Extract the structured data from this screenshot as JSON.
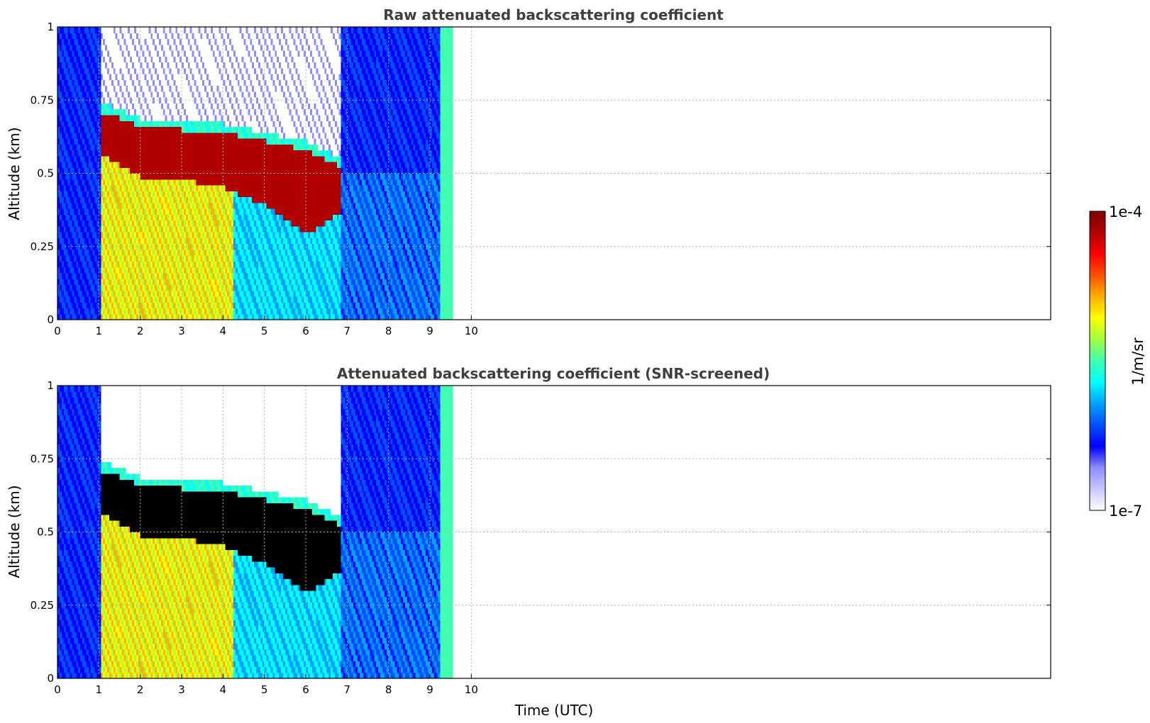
{
  "chart_data": [
    {
      "type": "heatmap",
      "title": "Raw attenuated backscattering coefficient",
      "xlabel": "",
      "ylabel": "Altitude (km)",
      "xlim": [
        0,
        24
      ],
      "ylim": [
        0,
        1
      ],
      "x_ticks": [
        "0",
        "1",
        "2",
        "3",
        "4",
        "5",
        "6",
        "7",
        "8",
        "9",
        "10"
      ],
      "y_ticks": [
        "0",
        "0.25",
        "0.5",
        "0.75",
        "1"
      ],
      "grid": true,
      "screened": false,
      "data_extent_hours": [
        0,
        9.55
      ],
      "features": {
        "cloud_layer": [
          {
            "hour": 1.1,
            "top_km": 0.7,
            "base_km": 0.55
          },
          {
            "hour": 2.0,
            "top_km": 0.65,
            "base_km": 0.48
          },
          {
            "hour": 3.0,
            "top_km": 0.64,
            "base_km": 0.47
          },
          {
            "hour": 4.0,
            "top_km": 0.63,
            "base_km": 0.44
          },
          {
            "hour": 5.0,
            "top_km": 0.6,
            "base_km": 0.38
          },
          {
            "hour": 6.0,
            "top_km": 0.57,
            "base_km": 0.28
          },
          {
            "hour": 6.7,
            "top_km": 0.52,
            "base_km": 0.35
          }
        ]
      }
    },
    {
      "type": "heatmap",
      "title": "Attenuated backscattering coefficient (SNR-screened)",
      "xlabel": "Time (UTC)",
      "ylabel": "Altitude (km)",
      "xlim": [
        0,
        24
      ],
      "ylim": [
        0,
        1
      ],
      "x_ticks": [
        "0",
        "1",
        "2",
        "3",
        "4",
        "5",
        "6",
        "7",
        "8",
        "9",
        "10"
      ],
      "y_ticks": [
        "0",
        "0.25",
        "0.5",
        "0.75",
        "1"
      ],
      "grid": true,
      "screened": true,
      "data_extent_hours": [
        0,
        9.55
      ],
      "features": {
        "cloud_layer": [
          {
            "hour": 1.1,
            "top_km": 0.7,
            "base_km": 0.55
          },
          {
            "hour": 2.0,
            "top_km": 0.65,
            "base_km": 0.48
          },
          {
            "hour": 3.0,
            "top_km": 0.64,
            "base_km": 0.47
          },
          {
            "hour": 4.0,
            "top_km": 0.63,
            "base_km": 0.44
          },
          {
            "hour": 5.0,
            "top_km": 0.6,
            "base_km": 0.38
          },
          {
            "hour": 6.0,
            "top_km": 0.57,
            "base_km": 0.28
          },
          {
            "hour": 6.7,
            "top_km": 0.52,
            "base_km": 0.35
          }
        ]
      }
    }
  ],
  "colorbar": {
    "label": "1/m/sr",
    "max_label": "1e-4",
    "min_label": "1e-7",
    "colors": [
      "#ffffff",
      "#c8c8ff",
      "#8c8cff",
      "#0000ff",
      "#0050ff",
      "#00a0ff",
      "#00ffff",
      "#40ffb0",
      "#a0ff40",
      "#ffff00",
      "#ffb000",
      "#ff5000",
      "#ff0000",
      "#b00000",
      "#7f0000"
    ]
  }
}
